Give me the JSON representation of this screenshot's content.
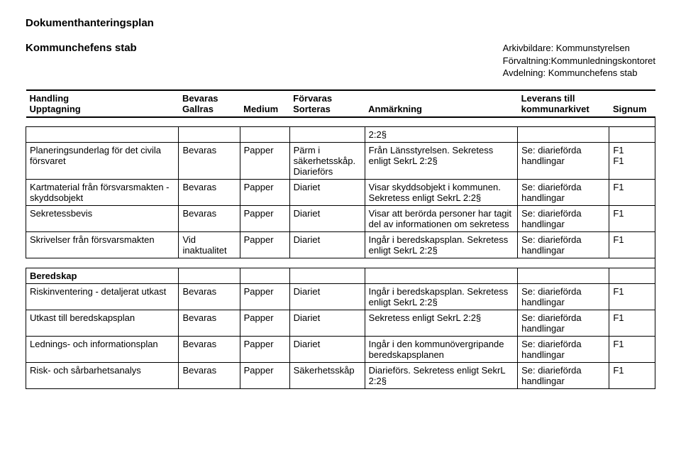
{
  "doc_title": "Dokumenthanteringsplan",
  "sub_title": "Kommunchefens stab",
  "archive": {
    "l1": "Arkivbildare: Kommunstyrelsen",
    "l2": "Förvaltning:Kommunledningskontoret",
    "l3": "Avdelning: Kommunchefens stab"
  },
  "head": {
    "c0a": "Handling",
    "c0b": "Upptagning",
    "c1a": "Bevaras",
    "c1b": "Gallras",
    "c2": "Medium",
    "c3a": "Förvaras",
    "c3b": "Sorteras",
    "c4": "Anmärkning",
    "c5a": "Leverans till",
    "c5b": "kommunarkivet",
    "c6": "Signum"
  },
  "rows": [
    {
      "c0": "",
      "c1": "",
      "c2": "",
      "c3": "",
      "c4": "2:2§",
      "c5": "",
      "c6": ""
    },
    {
      "c0": "Planeringsunderlag för det civila försvaret",
      "c1": "Bevaras",
      "c2": "Papper",
      "c3": "Pärm i säkerhetsskåp. Diarieförs",
      "c4": "Från Länsstyrelsen. Sekretess enligt SekrL 2:2§",
      "c5": "Se: diarieförda handlingar",
      "c6": "F1\nF1"
    },
    {
      "c0": "Kartmaterial från försvarsmakten - skyddsobjekt",
      "c1": "Bevaras",
      "c2": "Papper",
      "c3": "Diariet",
      "c4": "Visar skyddsobjekt i kommunen. Sekretess enligt SekrL 2:2§",
      "c5": "Se: diarieförda handlingar",
      "c6": "F1"
    },
    {
      "c0": "Sekretessbevis",
      "c1": "Bevaras",
      "c2": "Papper",
      "c3": "Diariet",
      "c4": "Visar att berörda personer har tagit del av informationen om sekretess",
      "c5": "Se: diarieförda handlingar",
      "c6": "F1"
    },
    {
      "c0": "Skrivelser från försvarsmakten",
      "c1": "Vid inaktualitet",
      "c2": "Papper",
      "c3": "Diariet",
      "c4": "Ingår i beredskapsplan. Sekretess enligt SekrL 2:2§",
      "c5": "Se: diarieförda handlingar",
      "c6": "F1"
    }
  ],
  "section2_label": "Beredskap",
  "rows2": [
    {
      "c0": "Riskinventering - detaljerat utkast",
      "c1": "Bevaras",
      "c2": "Papper",
      "c3": "Diariet",
      "c4": "Ingår i beredskapsplan. Sekretess enligt SekrL 2:2§",
      "c5": "Se: diarieförda handlingar",
      "c6": "F1"
    },
    {
      "c0": "Utkast till beredskapsplan",
      "c1": "Bevaras",
      "c2": "Papper",
      "c3": "Diariet",
      "c4": "Sekretess enligt SekrL 2:2§",
      "c5": "Se: diarieförda handlingar",
      "c6": "F1"
    },
    {
      "c0": "Lednings- och informationsplan",
      "c1": "Bevaras",
      "c2": "Papper",
      "c3": "Diariet",
      "c4": "Ingår i den kommunövergripande beredskapsplanen",
      "c5": "Se: diarieförda handlingar",
      "c6": "F1"
    },
    {
      "c0": "Risk- och sårbarhetsanalys",
      "c1": "Bevaras",
      "c2": "Papper",
      "c3": "Säkerhetsskåp",
      "c4": "Diarieförs. Sekretess enligt SekrL 2:2§",
      "c5": "Se: diarieförda handlingar",
      "c6": "F1"
    }
  ]
}
